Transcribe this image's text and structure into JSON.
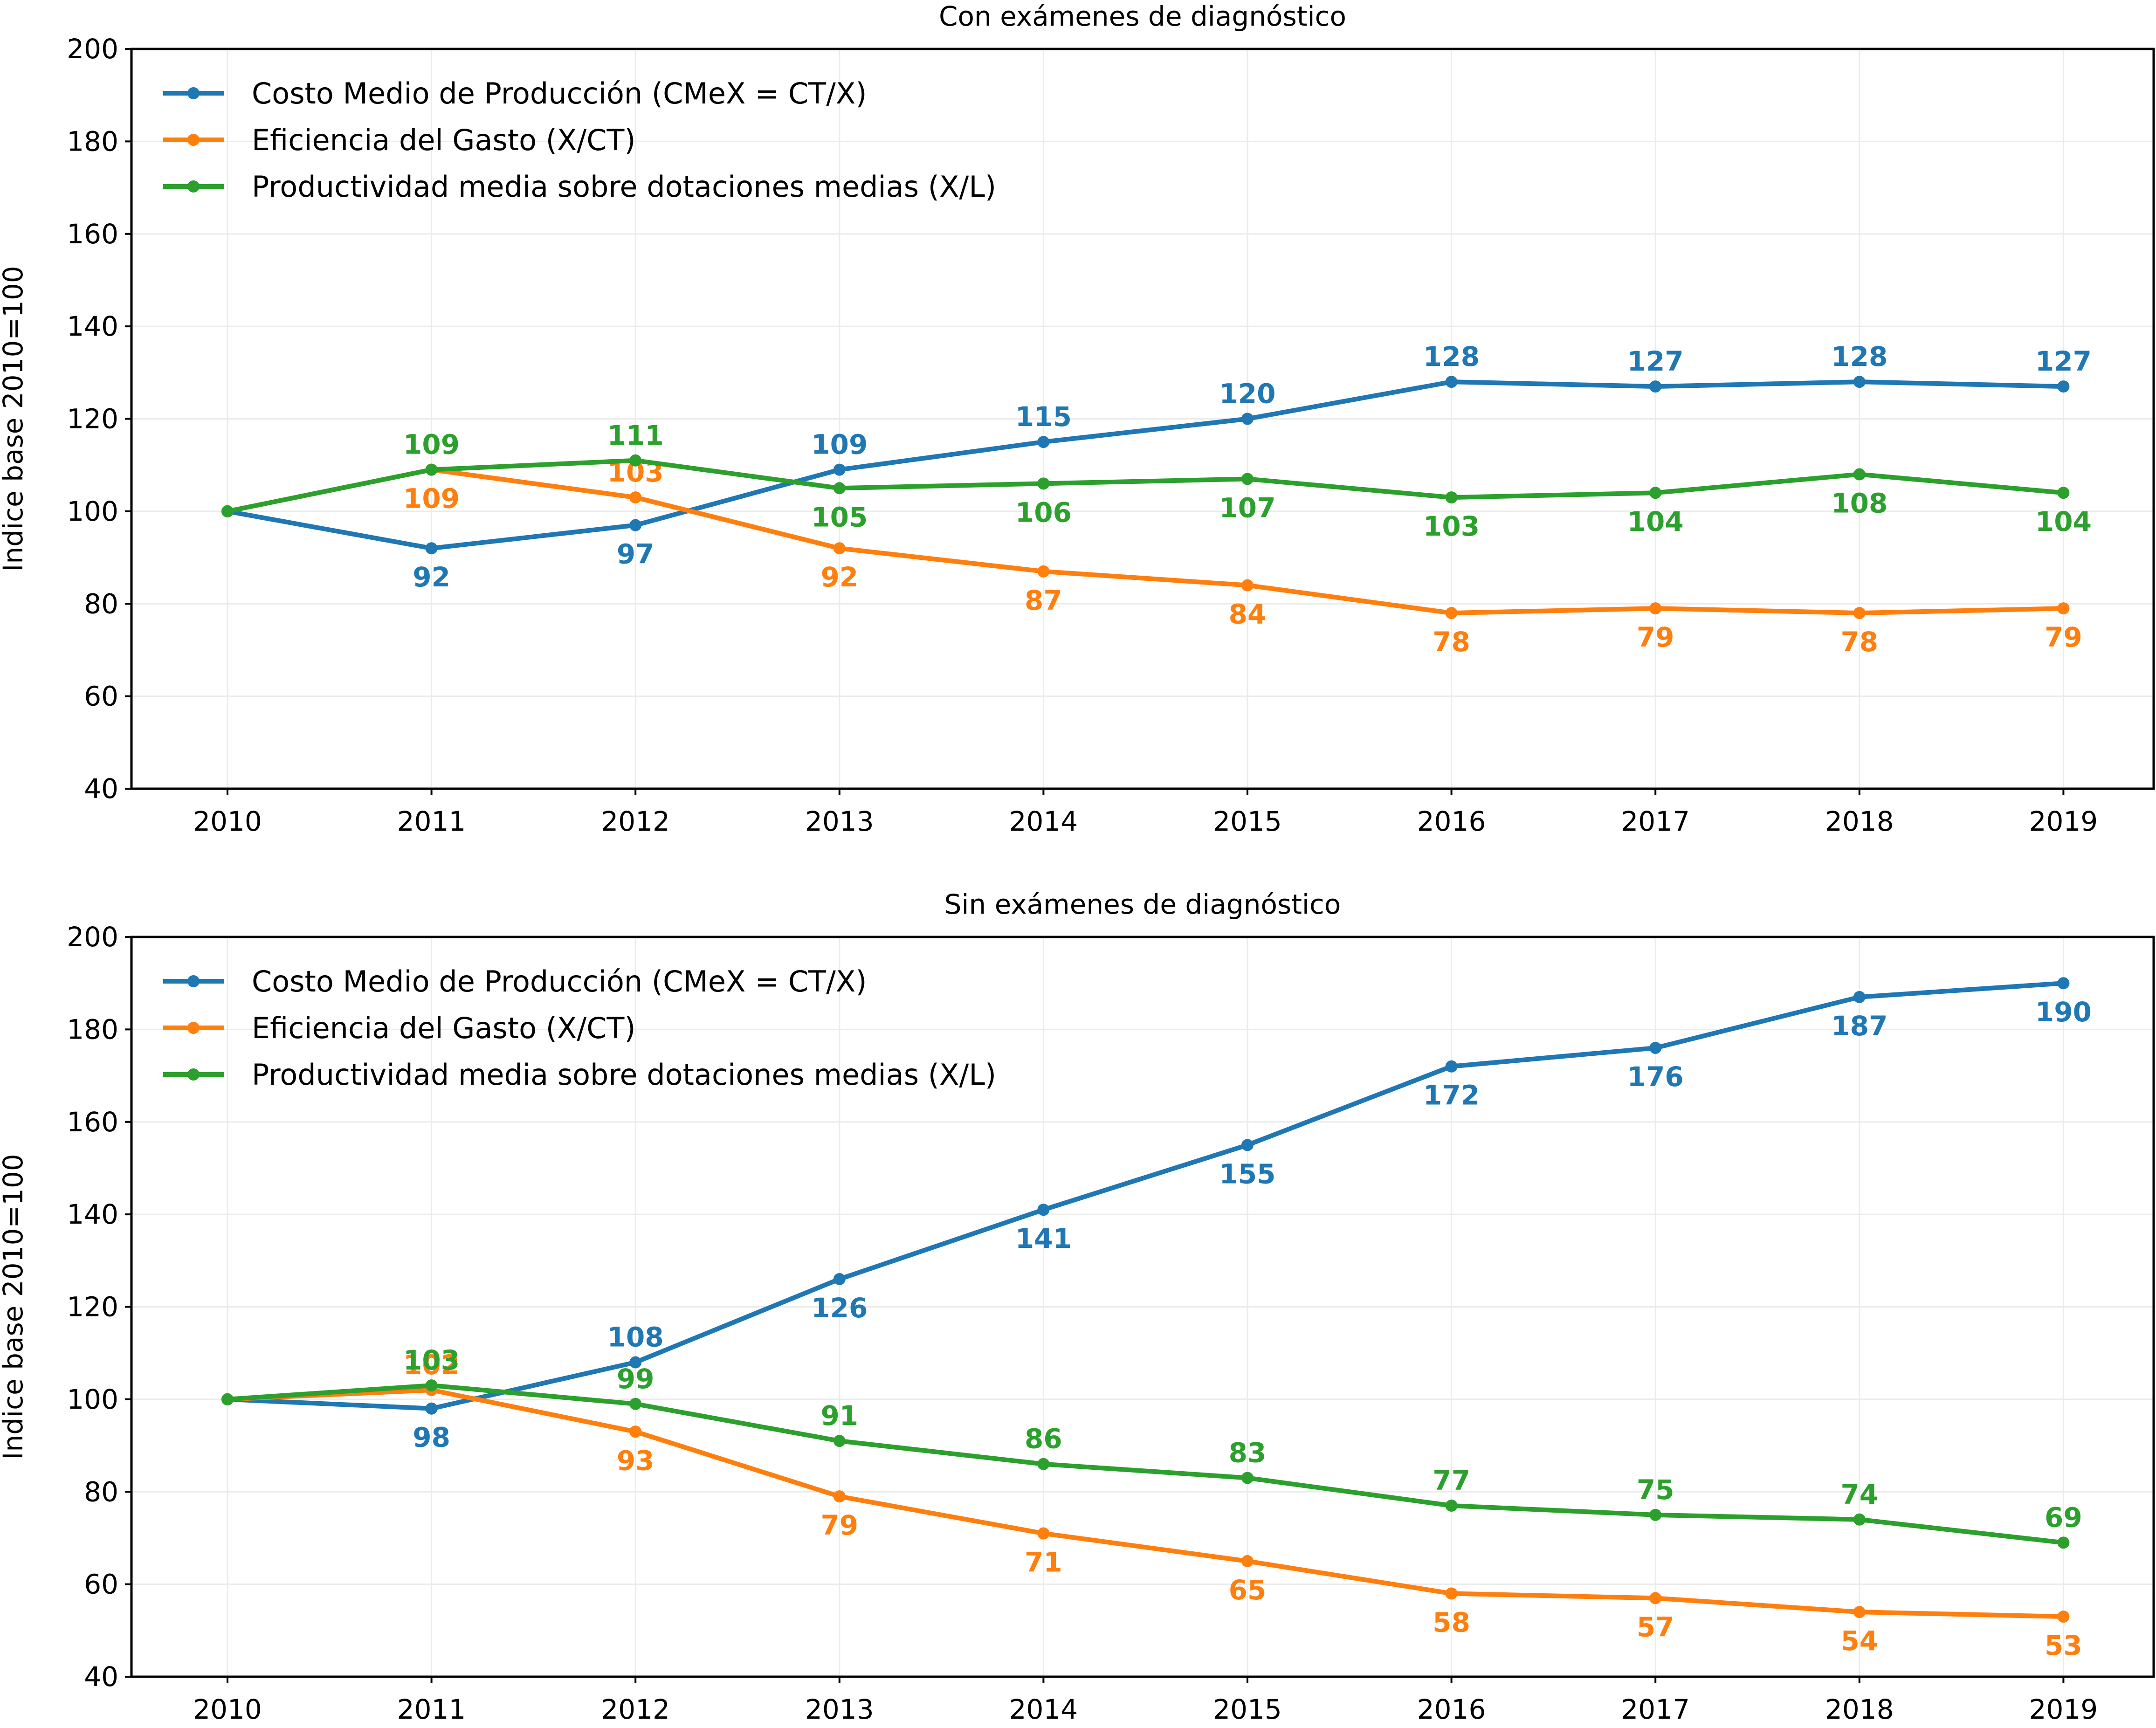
{
  "chart_data": [
    {
      "type": "line",
      "title": "Con exámenes de diagnóstico",
      "xlabel": "",
      "ylabel": "Indice base 2010=100",
      "ylim": [
        40,
        200
      ],
      "yticks": [
        40,
        60,
        80,
        100,
        120,
        140,
        160,
        180,
        200
      ],
      "grid": true,
      "legend_position": "top-left",
      "x": [
        "2010",
        "2011",
        "2012",
        "2013",
        "2014",
        "2015",
        "2016",
        "2017",
        "2018",
        "2019"
      ],
      "series": [
        {
          "name": "Costo Medio de Producción (CMeX = CT/X)",
          "color": "#1f77b4",
          "values": [
            100,
            92,
            97,
            109,
            115,
            120,
            128,
            127,
            128,
            127
          ],
          "labels": [
            "",
            "92",
            "97",
            "109",
            "115",
            "120",
            "128",
            "127",
            "128",
            "127"
          ],
          "label_side": [
            "",
            "below",
            "below",
            "above",
            "above",
            "above",
            "above",
            "above",
            "above",
            "above"
          ]
        },
        {
          "name": "Eficiencia del Gasto (X/CT)",
          "color": "#ff7f0e",
          "values": [
            100,
            109,
            103,
            92,
            87,
            84,
            78,
            79,
            78,
            79
          ],
          "labels": [
            "",
            "109",
            "103",
            "92",
            "87",
            "84",
            "78",
            "79",
            "78",
            "79"
          ],
          "label_side": [
            "",
            "below",
            "above",
            "below",
            "below",
            "below",
            "below",
            "below",
            "below",
            "below"
          ]
        },
        {
          "name": "Productividad media sobre dotaciones medias (X/L)",
          "color": "#2ca02c",
          "values": [
            100,
            109,
            111,
            105,
            106,
            107,
            103,
            104,
            108,
            104
          ],
          "labels": [
            "",
            "109",
            "111",
            "105",
            "106",
            "107",
            "103",
            "104",
            "108",
            "104"
          ],
          "label_side": [
            "",
            "above",
            "above",
            "below",
            "below",
            "below",
            "below",
            "below",
            "below",
            "below"
          ]
        }
      ]
    },
    {
      "type": "line",
      "title": "Sin exámenes de diagnóstico",
      "xlabel": "",
      "ylabel": "Indice base 2010=100",
      "ylim": [
        40,
        200
      ],
      "yticks": [
        40,
        60,
        80,
        100,
        120,
        140,
        160,
        180,
        200
      ],
      "grid": true,
      "legend_position": "top-left",
      "x": [
        "2010",
        "2011",
        "2012",
        "2013",
        "2014",
        "2015",
        "2016",
        "2017",
        "2018",
        "2019"
      ],
      "series": [
        {
          "name": "Costo Medio de Producción (CMeX = CT/X)",
          "color": "#1f77b4",
          "values": [
            100,
            98,
            108,
            126,
            141,
            155,
            172,
            176,
            187,
            190
          ],
          "labels": [
            "",
            "98",
            "108",
            "126",
            "141",
            "155",
            "172",
            "176",
            "187",
            "190"
          ],
          "label_side": [
            "",
            "below",
            "above",
            "below",
            "below",
            "below",
            "below",
            "below",
            "below",
            "below"
          ]
        },
        {
          "name": "Eficiencia del Gasto (X/CT)",
          "color": "#ff7f0e",
          "values": [
            100,
            102,
            93,
            79,
            71,
            65,
            58,
            57,
            54,
            53
          ],
          "labels": [
            "",
            "102",
            "93",
            "79",
            "71",
            "65",
            "58",
            "57",
            "54",
            "53"
          ],
          "label_side": [
            "",
            "above",
            "below",
            "below",
            "below",
            "below",
            "below",
            "below",
            "below",
            "below"
          ]
        },
        {
          "name": "Productividad media sobre dotaciones medias (X/L)",
          "color": "#2ca02c",
          "values": [
            100,
            103,
            99,
            91,
            86,
            83,
            77,
            75,
            74,
            69
          ],
          "labels": [
            "",
            "103",
            "99",
            "91",
            "86",
            "83",
            "77",
            "75",
            "74",
            "69"
          ],
          "label_side": [
            "",
            "above",
            "above",
            "above",
            "above",
            "above",
            "above",
            "above",
            "above",
            "above"
          ]
        }
      ]
    }
  ]
}
